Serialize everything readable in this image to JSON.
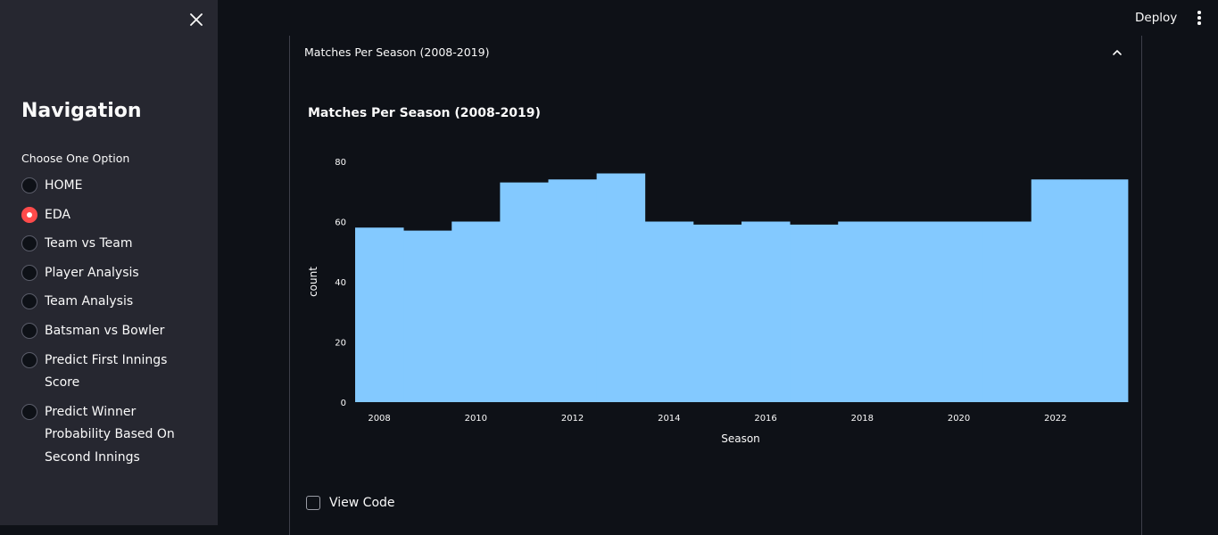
{
  "sidebar": {
    "title": "Navigation",
    "radio_label": "Choose One Option",
    "options": [
      {
        "label": "HOME",
        "selected": false
      },
      {
        "label": "EDA",
        "selected": true
      },
      {
        "label": "Team vs Team",
        "selected": false
      },
      {
        "label": "Player Analysis",
        "selected": false
      },
      {
        "label": "Team Analysis",
        "selected": false
      },
      {
        "label": "Batsman vs Bowler",
        "selected": false
      },
      {
        "label": "Predict First Innings Score",
        "selected": false
      },
      {
        "label": "Predict Winner Probability Based On Second Innings",
        "selected": false
      }
    ]
  },
  "topbar": {
    "deploy_label": "Deploy"
  },
  "expander": {
    "title": "Matches Per Season (2008-2019)",
    "expanded": true
  },
  "chart_data": {
    "type": "bar",
    "title": "Matches Per Season (2008-2019)",
    "xlabel": "Season",
    "ylabel": "count",
    "x": [
      2008,
      2009,
      2010,
      2011,
      2012,
      2013,
      2014,
      2015,
      2016,
      2017,
      2018,
      2019,
      2020,
      2021,
      2022,
      2023
    ],
    "values": [
      58,
      57,
      60,
      73,
      74,
      76,
      60,
      59,
      60,
      59,
      60,
      60,
      60,
      60,
      74,
      74
    ],
    "x_ticks": [
      2008,
      2010,
      2012,
      2014,
      2016,
      2018,
      2020,
      2022
    ],
    "y_ticks": [
      0,
      20,
      40,
      60,
      80
    ],
    "ylim": [
      0,
      80
    ],
    "xlim": [
      2007.5,
      2023.5
    ],
    "bar_color": "#83c9ff",
    "grid": false
  },
  "checkbox": {
    "label": "View Code",
    "checked": false
  },
  "colors": {
    "accent": "#ff4b4b",
    "background": "#0e1117",
    "sidebar": "#262730"
  }
}
